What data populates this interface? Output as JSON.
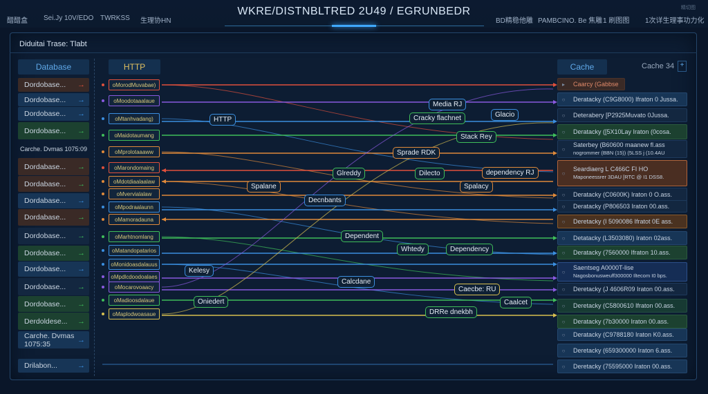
{
  "header": {
    "title": "WKRE/DISTNBLTRED 2U49 / EGRUNBEDR",
    "left_items": [
      "醋醋盒",
      "Sei.Jy 10V/EDO",
      "TWRKSS",
      "生理协HN"
    ],
    "right_items": [
      "BD精稳他雕",
      "PAMBCINO. Be 焦雕",
      "1 刷图图",
      "1次详生理事功力化"
    ],
    "corner": "精切图"
  },
  "panel": {
    "title": "Diduitai Trase: Tlabt"
  },
  "columns": {
    "left": "Database",
    "middle": "HTTP",
    "right": "Cache",
    "right_extra": "Cache 34",
    "add": "+"
  },
  "colors": {
    "red": "#e0503c",
    "blue": "#3b8fe0",
    "green": "#3fbf5a",
    "orange": "#e08a3a",
    "purple": "#8a5ae0",
    "yellow": "#d8c050"
  },
  "left_rows": [
    {
      "label": "Dordobase...",
      "style": "brown",
      "arrow": "red"
    },
    {
      "label": "Dordobase...",
      "style": "blue",
      "arrow": "blue"
    },
    {
      "label": "Dordobase...",
      "style": "blue",
      "arrow": "blue"
    },
    {
      "label": "Dordobase...",
      "style": "green",
      "arrow": "green"
    },
    {
      "label": "Carche. Dvmas 1075:09",
      "style": "plain",
      "arrow": ""
    },
    {
      "label": "Dordabase...",
      "style": "brown",
      "arrow": "green"
    },
    {
      "label": "Dordabase...",
      "style": "brown",
      "arrow": "green"
    },
    {
      "label": "Dordabase...",
      "style": "blue",
      "arrow": "blue"
    },
    {
      "label": "Dordabase...",
      "style": "brown",
      "arrow": "green"
    },
    {
      "label": "Dordobase...",
      "style": "dark",
      "arrow": "green"
    },
    {
      "label": "Dordobase...",
      "style": "green",
      "arrow": "green"
    },
    {
      "label": "Dordobase...",
      "style": "blue",
      "arrow": "blue"
    },
    {
      "label": "Dordobase...",
      "style": "dark",
      "arrow": "green"
    },
    {
      "label": "Dordobase...",
      "style": "green",
      "arrow": "green"
    },
    {
      "label": "Derdoldese...",
      "style": "green",
      "arrow": "green"
    },
    {
      "label": "Carche. Dvmas 1075:35",
      "style": "blue",
      "arrow": "blue"
    },
    {
      "label": "Drilabon...",
      "style": "blue",
      "arrow": "blue"
    }
  ],
  "http_rows": [
    {
      "label": "oMorodMuvabae)",
      "color": "red",
      "dir": "right"
    },
    {
      "label": "oMoodotaaalaue",
      "color": "purple",
      "dir": "right"
    },
    {
      "label": "oMtanhvadang)",
      "color": "blue",
      "dir": "right"
    },
    {
      "label": "oMaidotaumang",
      "color": "green",
      "dir": "right"
    },
    {
      "label": "oMprolotaaaww",
      "color": "orange",
      "dir": "right"
    },
    {
      "label": "oMarondomaing",
      "color": "red",
      "dir": "left"
    },
    {
      "label": "oMdotdiaalaalaw",
      "color": "orange",
      "dir": "left"
    },
    {
      "label": "oMvervialalaw",
      "color": "orange",
      "dir": "right"
    },
    {
      "label": "oMpodraalaunn",
      "color": "blue",
      "dir": "right"
    },
    {
      "label": "oMamoradauna",
      "color": "orange",
      "dir": "left"
    },
    {
      "label": "oMarhtnomlang",
      "color": "green",
      "dir": "right"
    },
    {
      "label": "oMatandopatarios",
      "color": "blue",
      "dir": "right"
    },
    {
      "label": "oMonidoasdalauus",
      "color": "blue",
      "dir": "right"
    },
    {
      "label": "oMpdlcdoodoalaes",
      "color": "purple",
      "dir": "right"
    },
    {
      "label": "oMocarovoaacy",
      "color": "purple",
      "dir": "right"
    },
    {
      "label": "oMadioosdalaue",
      "color": "green",
      "dir": "right"
    },
    {
      "label": "oMaplodwoasaue",
      "color": "yellow",
      "dir": "right"
    }
  ],
  "cache_rows": [
    {
      "label": "Caarcy (Gabbse",
      "style": "brown"
    },
    {
      "label": "Deratacky (C9G8000) Ifraton 0 Jussa.",
      "style": "blue"
    },
    {
      "label": "Deterabery [P2925Muvato 0Jussa.",
      "style": "dark"
    },
    {
      "label": "Deratacky ([5X10Lay Iraton (0cosa.",
      "style": "green"
    },
    {
      "label": "Saterbey (B60600 maanew fl.ass",
      "sub": "nogrommer (BBN (15)) (5LSS j (10.4AU",
      "style": "dark"
    },
    {
      "label": "Seardiaerg L C466C FI HO",
      "sub": "Maponeessrer 3DAU [RTC @ I1 DSS8.",
      "style": "brownhl"
    },
    {
      "label": "Deratacky (C0600K) Iraton 0 O.ass.",
      "style": "dark"
    },
    {
      "label": "Deratacky (P806503 Iraton 00.ass.",
      "style": "dark"
    },
    {
      "label": "Deretacky (I 5090086 Ifratot 0E ass.",
      "style": "orange"
    },
    {
      "label": "Detatacky (L3503080) Iraton 02ass.",
      "style": "blue"
    },
    {
      "label": "Deratacky (7560000 Ifraton 10.ass.",
      "style": "green"
    },
    {
      "label": "Saentseg A0000T-lise",
      "sub": "Nagosbonusweuff300000 Iltecom I0 bps.",
      "style": "bluehl"
    },
    {
      "label": "Deretacky (J 4606R09 Iraton 00.ass.",
      "style": "dark"
    },
    {
      "label": "Deretacky (C5800610 Ifraton 00.ass.",
      "style": "green2"
    },
    {
      "label": "Deratacky (7b30000 Iraton 00.ass.",
      "style": "green"
    },
    {
      "label": "Deratacky (C9788180 Iraton K0.ass.",
      "style": "blue"
    },
    {
      "label": "Deretacky (659300000 Iraton 6.ass.",
      "style": "blue"
    },
    {
      "label": "Deretacky (75595000 Iraton 00.ass.",
      "style": "blue"
    }
  ],
  "badges": [
    {
      "label": "Media RJ",
      "color": "blue"
    },
    {
      "label": "Cracky flachnet",
      "color": "green"
    },
    {
      "label": "Glacio",
      "color": "blue"
    },
    {
      "label": "HTTP",
      "color": "blue"
    },
    {
      "label": "Stack Rey",
      "color": "green"
    },
    {
      "label": "Sprade RDK",
      "color": "orange"
    },
    {
      "label": "Glreddy",
      "color": "green"
    },
    {
      "label": "Dilecto",
      "color": "green"
    },
    {
      "label": "dependency RJ",
      "color": "orange"
    },
    {
      "label": "Spalane",
      "color": "orange"
    },
    {
      "label": "Spalacy",
      "color": "orange"
    },
    {
      "label": "Decnbants",
      "color": "blue"
    },
    {
      "label": "Dependent",
      "color": "green"
    },
    {
      "label": "Whtedy",
      "color": "green"
    },
    {
      "label": "Dependency",
      "color": "green"
    },
    {
      "label": "Kelesy",
      "color": "blue"
    },
    {
      "label": "Calcdane",
      "color": "blue"
    },
    {
      "label": "Caecbe: RU",
      "color": "yellow"
    },
    {
      "label": "Oniedert",
      "color": "green"
    },
    {
      "label": "Caalcet",
      "color": "green"
    },
    {
      "label": "DRRe dnekbh",
      "color": "green"
    }
  ]
}
